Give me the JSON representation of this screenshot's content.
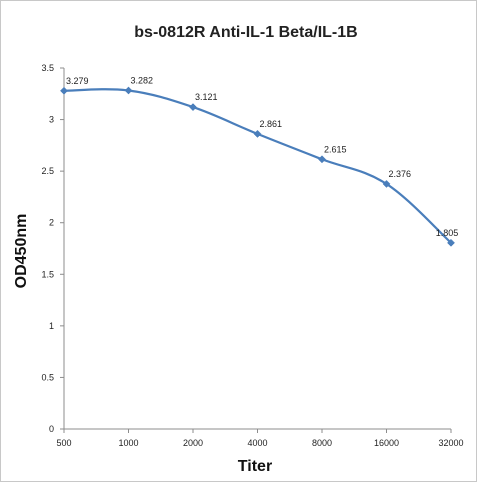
{
  "chart_data": {
    "type": "line",
    "title": "bs-0812R Anti-IL-1 Beta/IL-1B",
    "xlabel": "Titer",
    "ylabel": "OD450nm",
    "categories": [
      "500",
      "1000",
      "2000",
      "4000",
      "8000",
      "16000",
      "32000"
    ],
    "series": [
      {
        "values": [
          3.279,
          3.282,
          3.121,
          2.861,
          2.615,
          2.376,
          1.805
        ],
        "labels": [
          "3.279",
          "3.282",
          "3.121",
          "2.861",
          "2.615",
          "2.376",
          "1.805"
        ],
        "color": "#4a7ebb"
      }
    ],
    "ylim": [
      0,
      3.5
    ],
    "yticks": [
      "0",
      "0.5",
      "1",
      "1.5",
      "2",
      "2.5",
      "3",
      "3.5"
    ],
    "grid": false,
    "legend": "none"
  }
}
